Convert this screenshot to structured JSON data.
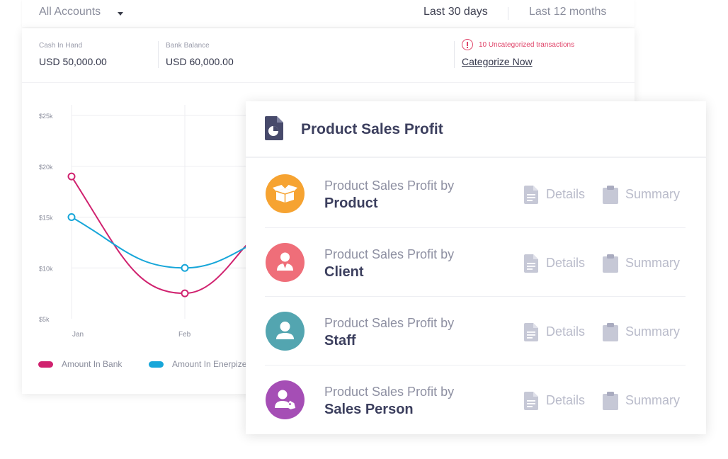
{
  "filters": {
    "account": "All Accounts",
    "range_active": "Last 30 days",
    "range_other": "Last 12 months"
  },
  "stats": {
    "cash_label": "Cash In Hand",
    "cash_value": "USD 50,000.00",
    "bank_label": "Bank Balance",
    "bank_value": "USD 60,000.00",
    "alert_text": "10 Uncategorized transactions",
    "categorize_link": "Categorize Now"
  },
  "chart_data": {
    "type": "line",
    "title": "",
    "xlabel": "",
    "ylabel": "",
    "categories": [
      "Jan",
      "Feb"
    ],
    "y_ticks": [
      "$25k",
      "$20k",
      "$15k",
      "$10k",
      "$5k"
    ],
    "ylim": [
      5000,
      25000
    ],
    "grid": true,
    "legend_position": "bottom-left",
    "series": [
      {
        "name": "Amount In Bank",
        "color": "#d0226f",
        "values": [
          19000,
          7500
        ]
      },
      {
        "name": "Amount In Enerpize",
        "color": "#17a6d9",
        "values": [
          15000,
          10000
        ]
      }
    ]
  },
  "panel": {
    "title": "Product Sales Profit",
    "icon": "pie-chart-document-icon",
    "details_label": "Details",
    "summary_label": "Summary",
    "rows": [
      {
        "prefix": "Product Sales Profit by",
        "label": "Product",
        "icon": "open-box-icon",
        "color": "#f6a331"
      },
      {
        "prefix": "Product Sales Profit by",
        "label": "Client",
        "icon": "client-person-icon",
        "color": "#ef6e79"
      },
      {
        "prefix": "Product Sales Profit by",
        "label": "Staff",
        "icon": "staff-person-icon",
        "color": "#53a5b0"
      },
      {
        "prefix": "Product Sales Profit by",
        "label": "Sales Person",
        "icon": "sales-person-tag-icon",
        "color": "#a54eb5"
      }
    ]
  }
}
